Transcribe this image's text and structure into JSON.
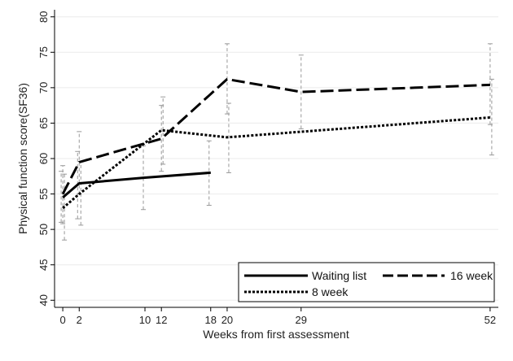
{
  "chart_data": {
    "type": "line",
    "title": "",
    "xlabel": "Weeks from first assessment",
    "ylabel": "Physical function score(SF36)",
    "xlim": [
      -1,
      53
    ],
    "ylim": [
      39,
      81
    ],
    "x_ticks": [
      0,
      2,
      10,
      12,
      18,
      20,
      29,
      52
    ],
    "x_tick_labels": [
      "0",
      "2",
      "10",
      "12",
      "18",
      "20",
      "29",
      "52"
    ],
    "y_ticks": [
      40,
      45,
      50,
      55,
      60,
      65,
      70,
      75,
      80
    ],
    "grid": true,
    "legend": {
      "position": "bottom-right",
      "columns": 2
    },
    "series": [
      {
        "name": "Waiting list",
        "style": "solid",
        "color": "#000000",
        "x": [
          0,
          2,
          10,
          18
        ],
        "y": [
          54.5,
          56.5,
          57.3,
          58.0
        ],
        "ci_low": [
          51.0,
          51.5,
          52.8,
          53.4
        ],
        "ci_high": [
          58.2,
          61.0,
          61.8,
          62.5
        ]
      },
      {
        "name": "16 week",
        "style": "dash",
        "color": "#000000",
        "x": [
          0,
          2,
          12,
          20,
          29,
          52
        ],
        "y": [
          55.0,
          59.5,
          62.8,
          71.2,
          69.4,
          70.4
        ],
        "ci_low": [
          50.8,
          55.0,
          58.2,
          66.3,
          64.2,
          64.8
        ],
        "ci_high": [
          59.0,
          63.8,
          67.5,
          76.2,
          74.6,
          76.2
        ]
      },
      {
        "name": "8 week",
        "style": "dot",
        "color": "#000000",
        "x": [
          0,
          2,
          12,
          20,
          52
        ],
        "y": [
          53.0,
          55.0,
          64.0,
          63.0,
          65.8
        ],
        "ci_low": [
          48.5,
          50.6,
          59.2,
          58.0,
          60.5
        ],
        "ci_high": [
          57.8,
          59.6,
          68.7,
          67.8,
          71.2
        ]
      }
    ],
    "ci_color": "#999999"
  }
}
